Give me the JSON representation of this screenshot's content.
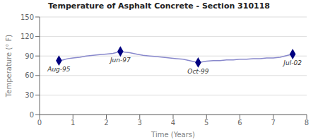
{
  "chart_data": {
    "type": "line",
    "title": "Temperature of Asphalt Concrete - Section 310118",
    "x_label": "Time (Years)",
    "y_label": "Temperature (° F)",
    "xlim": [
      0,
      8
    ],
    "ylim": [
      0,
      150
    ],
    "xticks": [
      0,
      1,
      2,
      3,
      4,
      5,
      6,
      7,
      8
    ],
    "yticks": [
      0,
      30,
      60,
      90,
      120,
      150
    ],
    "grid": true,
    "series": [
      {
        "type": "line",
        "color": "#8888cc",
        "x": [
          0.58,
          0.7,
          0.85,
          1.0,
          1.2,
          1.4,
          1.6,
          1.8,
          2.0,
          2.2,
          2.42,
          2.55,
          2.7,
          2.9,
          3.1,
          3.3,
          3.5,
          3.7,
          3.9,
          4.1,
          4.3,
          4.75,
          5.0,
          5.2,
          5.4,
          5.6,
          5.8,
          6.0,
          6.2,
          6.4,
          6.6,
          6.8,
          7.0,
          7.2,
          7.58
        ],
        "values": [
          83,
          84,
          86,
          87,
          88,
          90,
          91,
          92,
          93,
          94,
          97,
          96,
          95,
          93,
          91,
          90,
          89,
          88,
          87,
          86,
          85,
          80,
          82,
          83,
          83,
          84,
          84,
          85,
          85,
          86,
          86,
          87,
          87,
          88,
          93
        ]
      },
      {
        "type": "scatter",
        "color": "#000080",
        "marker": "diamond",
        "x": [
          0.58,
          2.42,
          4.75,
          7.58
        ],
        "values": [
          83,
          97,
          80,
          93
        ]
      }
    ],
    "annotations": [
      {
        "x": 0.58,
        "y": 83,
        "text": "Aug-95"
      },
      {
        "x": 2.42,
        "y": 97,
        "text": "Jun-97"
      },
      {
        "x": 4.75,
        "y": 80,
        "text": "Oct-99"
      },
      {
        "x": 7.58,
        "y": 93,
        "text": "Jul-02"
      }
    ]
  }
}
